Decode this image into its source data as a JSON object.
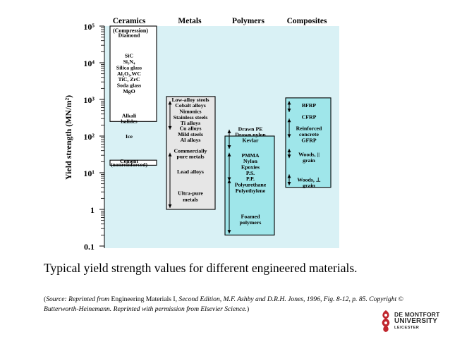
{
  "chart_data": {
    "type": "bar",
    "title": "",
    "xlabel": "",
    "ylabel": "Yield strength (MN/m²)",
    "y_scale": "log",
    "ylim": [
      0.1,
      100000
    ],
    "y_ticks": [
      "0.1",
      "1",
      "10¹",
      "10²",
      "10³",
      "10⁴",
      "10⁵"
    ],
    "categories": [
      "Ceramics",
      "Metals",
      "Polymers",
      "Composites"
    ],
    "category_sub": [
      "(Compression)",
      "",
      "",
      ""
    ],
    "bars": [
      {
        "category": "Ceramics",
        "from": 250,
        "to": 100000,
        "color": "#ffffff"
      },
      {
        "category": "Ceramics",
        "from": 16,
        "to": 22,
        "color": "#ffffff"
      },
      {
        "category": "Metals",
        "from": 1,
        "to": 1200,
        "color": "#e6e6e6"
      },
      {
        "category": "Polymers",
        "from": 0.2,
        "to": 100,
        "color": "#9fe6ea"
      },
      {
        "category": "Composites",
        "from": 4,
        "to": 1100,
        "color": "#9fe6ea"
      }
    ],
    "materials": {
      "Ceramics": [
        "Diamond",
        "SiC",
        "Si₃N₄",
        "Silica glass",
        "Al₂O₃,WC",
        "TiC, ZrC",
        "Soda glass",
        "MgO",
        "Alkali",
        "halides",
        "Ice",
        "Cement",
        "(nonreinforced)"
      ],
      "Metals": [
        "Low-alloy steels",
        "Cobalt alloys",
        "Nimonics",
        "Stainless steels",
        "Ti alloys",
        "Cu alloys",
        "Mild steels",
        "Al alloys",
        "Commercially",
        "pure metals",
        "Lead alloys",
        "Ultra-pure",
        "metals"
      ],
      "Polymers": [
        "Drawn PE",
        "Drawn nylon",
        "Kevlar",
        "PMMA",
        "Nylon",
        "Epoxies",
        "P.S.",
        "P.P.",
        "Polyurethane",
        "Polyethylene",
        "Foamed",
        "polymers"
      ],
      "Composites": [
        "BFRP",
        "CFRP",
        "Reinforced",
        "concrete",
        "GFRP",
        "Woods, ||",
        "grain",
        "Woods, ⊥",
        "grain"
      ]
    },
    "background": "#d9f1f5"
  },
  "caption": "Typical yield strength values for different engineered materials.",
  "source": {
    "p1": "(",
    "p2": "Source: Reprinted from",
    "p3": " Engineering Materials I, ",
    "p4": "Second Edition, M.F. Ashby and D.R.H. Jones, 1996, Fig. 8-12, p. 85. Copyright © Butterworth-Heinemann. Reprinted with permission from Elsevier Science.",
    "p5": ")"
  },
  "logo": {
    "line1": "DE MONTFORT",
    "line2": "UNIVERSITY",
    "line3": "LEICESTER"
  }
}
